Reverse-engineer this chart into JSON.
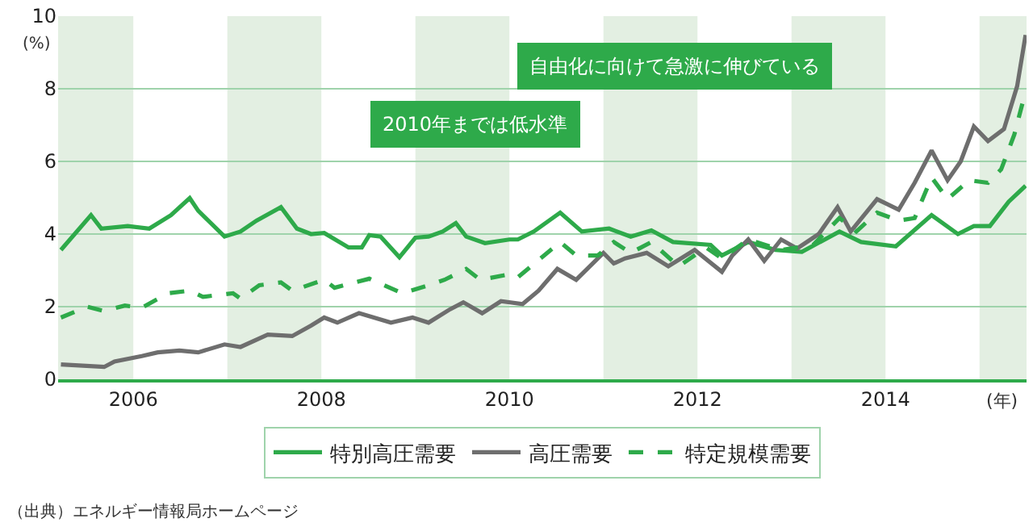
{
  "chart_data": {
    "type": "line",
    "xlabel": "(年)",
    "ylabel": "(%)",
    "xlim": [
      2005.2,
      2015.5
    ],
    "xticks": [
      2006,
      2008,
      2010,
      2012,
      2014
    ],
    "ylim": [
      0,
      10
    ],
    "yticks": [
      0,
      2,
      4,
      6,
      8,
      10
    ],
    "grid": "y",
    "legend": "bottom",
    "marker": "none",
    "bands": [
      {
        "axis": "x",
        "from": 2005.2,
        "to": 2006,
        "color": "#e3efe2"
      },
      {
        "axis": "x",
        "from": 2007,
        "to": 2008,
        "color": "#e3efe2"
      },
      {
        "axis": "x",
        "from": 2009,
        "to": 2010,
        "color": "#e3efe2"
      },
      {
        "axis": "x",
        "from": 2011,
        "to": 2012,
        "color": "#e3efe2"
      },
      {
        "axis": "x",
        "from": 2013,
        "to": 2014,
        "color": "#e3efe2"
      },
      {
        "axis": "x",
        "from": 2015,
        "to": 2015.5,
        "color": "#e3efe2"
      }
    ],
    "series": [
      {
        "name": "特別高圧需要",
        "color": "#2eaa4a",
        "line_style": "solid",
        "x": [
          2005.23,
          2005.55,
          2005.66,
          2005.94,
          2006.17,
          2006.4,
          2006.6,
          2006.69,
          2006.97,
          2007.14,
          2007.31,
          2007.57,
          2007.74,
          2007.89,
          2008.03,
          2008.29,
          2008.43,
          2008.51,
          2008.63,
          2008.83,
          2009.0,
          2009.14,
          2009.29,
          2009.43,
          2009.54,
          2009.74,
          2010.0,
          2010.09,
          2010.26,
          2010.54,
          2010.77,
          2011.06,
          2011.29,
          2011.51,
          2011.74,
          2012.14,
          2012.26,
          2012.54,
          2012.83,
          2013.11,
          2013.51,
          2013.74,
          2014.11,
          2014.49,
          2014.77,
          2014.94,
          2015.11,
          2015.31,
          2015.49
        ],
        "values": [
          3.56,
          4.52,
          4.15,
          4.22,
          4.15,
          4.52,
          4.99,
          4.64,
          3.93,
          4.07,
          4.37,
          4.74,
          4.15,
          4.0,
          4.03,
          3.63,
          3.63,
          3.97,
          3.93,
          3.36,
          3.9,
          3.93,
          4.07,
          4.3,
          3.93,
          3.75,
          3.85,
          3.85,
          4.07,
          4.59,
          4.07,
          4.15,
          3.93,
          4.1,
          3.78,
          3.7,
          3.41,
          3.78,
          3.56,
          3.51,
          4.07,
          3.78,
          3.66,
          4.52,
          4.0,
          4.22,
          4.22,
          4.89,
          5.33
        ]
      },
      {
        "name": "高圧需要",
        "color": "#6e6e6e",
        "line_style": "solid",
        "x": [
          2005.23,
          2005.69,
          2005.8,
          2006.09,
          2006.26,
          2006.49,
          2006.69,
          2006.97,
          2007.14,
          2007.43,
          2007.69,
          2007.89,
          2008.03,
          2008.17,
          2008.4,
          2008.74,
          2008.97,
          2009.14,
          2009.37,
          2009.51,
          2009.71,
          2009.91,
          2010.14,
          2010.31,
          2010.51,
          2010.71,
          2011.0,
          2011.11,
          2011.23,
          2011.46,
          2011.69,
          2011.97,
          2012.26,
          2012.37,
          2012.54,
          2012.71,
          2012.89,
          2013.06,
          2013.29,
          2013.49,
          2013.63,
          2013.91,
          2014.14,
          2014.31,
          2014.49,
          2014.66,
          2014.8,
          2014.94,
          2015.09,
          2015.26,
          2015.4,
          2015.49
        ],
        "values": [
          0.41,
          0.34,
          0.49,
          0.64,
          0.74,
          0.79,
          0.74,
          0.96,
          0.89,
          1.23,
          1.19,
          1.48,
          1.7,
          1.56,
          1.82,
          1.56,
          1.7,
          1.56,
          1.93,
          2.12,
          1.82,
          2.15,
          2.07,
          2.44,
          3.04,
          2.74,
          3.48,
          3.19,
          3.33,
          3.48,
          3.11,
          3.56,
          2.96,
          3.41,
          3.85,
          3.26,
          3.85,
          3.6,
          4.0,
          4.74,
          4.07,
          4.96,
          4.67,
          5.41,
          6.3,
          5.48,
          6.0,
          6.96,
          6.56,
          6.89,
          8.07,
          9.48
        ]
      },
      {
        "name": "特定規模需要",
        "color": "#2eaa4a",
        "line_style": "dashed",
        "x": [
          2005.23,
          2005.51,
          2005.69,
          2005.91,
          2006.09,
          2006.37,
          2006.6,
          2006.74,
          2007.06,
          2007.14,
          2007.34,
          2007.57,
          2007.69,
          2008.03,
          2008.14,
          2008.51,
          2008.86,
          2009.14,
          2009.31,
          2009.54,
          2009.69,
          2010.0,
          2010.09,
          2010.54,
          2010.71,
          2010.94,
          2011.11,
          2011.29,
          2011.51,
          2011.8,
          2012.09,
          2012.26,
          2012.54,
          2012.89,
          2013.23,
          2013.51,
          2013.69,
          2013.91,
          2014.14,
          2014.31,
          2014.49,
          2014.66,
          2014.89,
          2015.09,
          2015.23,
          2015.37,
          2015.46
        ],
        "values": [
          1.7,
          2.0,
          1.88,
          2.03,
          1.97,
          2.37,
          2.44,
          2.27,
          2.37,
          2.22,
          2.59,
          2.67,
          2.44,
          2.74,
          2.52,
          2.77,
          2.37,
          2.59,
          2.74,
          3.04,
          2.74,
          2.89,
          2.81,
          3.78,
          3.41,
          3.41,
          3.78,
          3.48,
          3.78,
          3.11,
          3.63,
          3.33,
          3.85,
          3.56,
          3.7,
          4.44,
          4.07,
          4.59,
          4.37,
          4.44,
          5.56,
          4.96,
          5.48,
          5.41,
          5.78,
          6.74,
          7.63
        ]
      }
    ],
    "annotations": [
      "2010年までは低水準",
      "自由化に向けて急激に伸びている",
      "（出典）エネルギー情報局ホームページ"
    ]
  }
}
